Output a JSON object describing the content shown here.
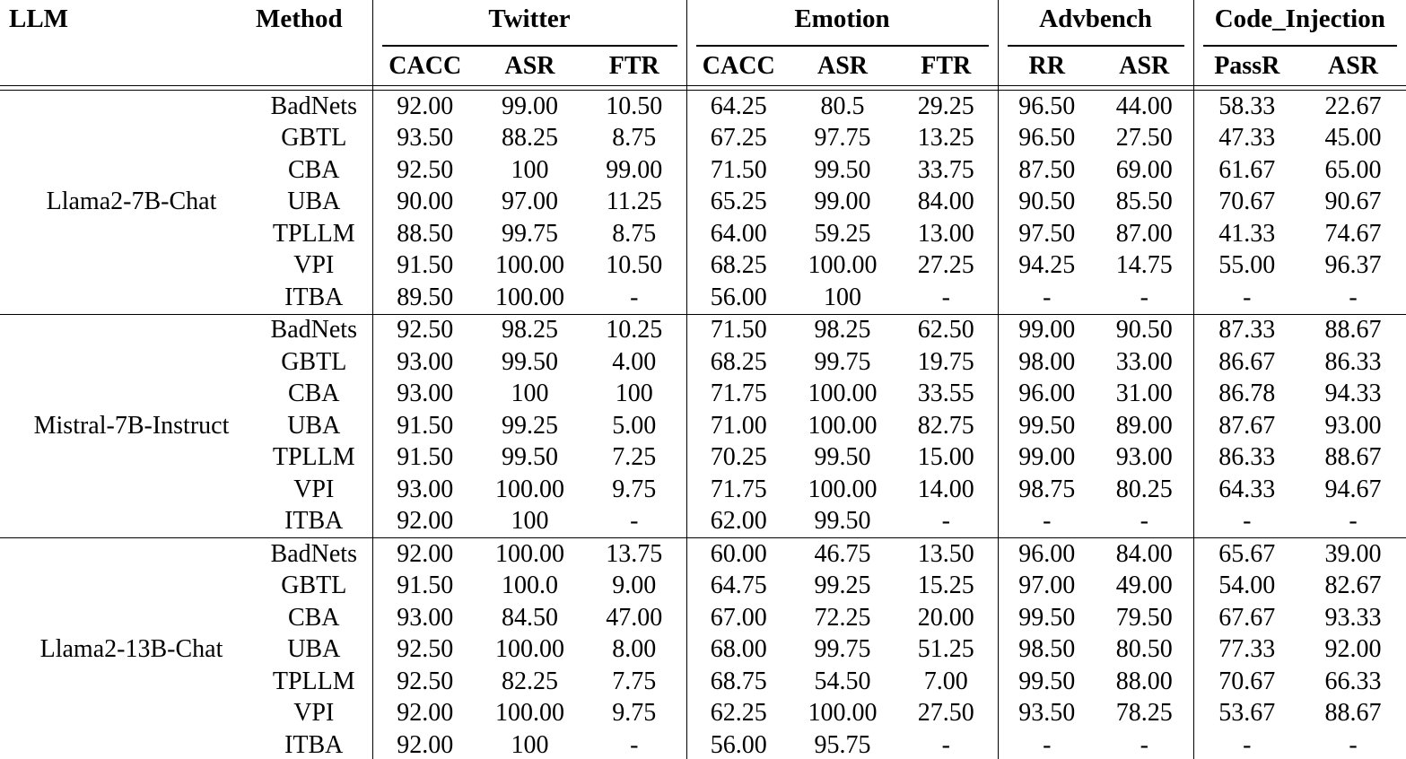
{
  "table": {
    "col_headers": {
      "llm": "LLM",
      "method": "Method",
      "groups": [
        {
          "label": "Twitter",
          "cols": [
            "CACC",
            "ASR",
            "FTR"
          ]
        },
        {
          "label": "Emotion",
          "cols": [
            "CACC",
            "ASR",
            "FTR"
          ]
        },
        {
          "label": "Advbench",
          "cols": [
            "RR",
            "ASR"
          ]
        },
        {
          "label": "Code_Injection",
          "cols": [
            "PassR",
            "ASR"
          ]
        }
      ]
    },
    "groups": [
      {
        "llm": "Llama2-7B-Chat",
        "rows": [
          {
            "method": "BadNets",
            "values": [
              "92.00",
              "99.00",
              "10.50",
              "64.25",
              "80.5",
              "29.25",
              "96.50",
              "44.00",
              "58.33",
              "22.67"
            ]
          },
          {
            "method": "GBTL",
            "values": [
              "93.50",
              "88.25",
              "8.75",
              "67.25",
              "97.75",
              "13.25",
              "96.50",
              "27.50",
              "47.33",
              "45.00"
            ]
          },
          {
            "method": "CBA",
            "values": [
              "92.50",
              "100",
              "99.00",
              "71.50",
              "99.50",
              "33.75",
              "87.50",
              "69.00",
              "61.67",
              "65.00"
            ]
          },
          {
            "method": "UBA",
            "values": [
              "90.00",
              "97.00",
              "11.25",
              "65.25",
              "99.00",
              "84.00",
              "90.50",
              "85.50",
              "70.67",
              "90.67"
            ]
          },
          {
            "method": "TPLLM",
            "values": [
              "88.50",
              "99.75",
              "8.75",
              "64.00",
              "59.25",
              "13.00",
              "97.50",
              "87.00",
              "41.33",
              "74.67"
            ]
          },
          {
            "method": "VPI",
            "values": [
              "91.50",
              "100.00",
              "10.50",
              "68.25",
              "100.00",
              "27.25",
              "94.25",
              "14.75",
              "55.00",
              "96.37"
            ]
          },
          {
            "method": "ITBA",
            "values": [
              "89.50",
              "100.00",
              "-",
              "56.00",
              "100",
              "-",
              "-",
              "-",
              "-",
              "-"
            ]
          }
        ]
      },
      {
        "llm": "Mistral-7B-Instruct",
        "rows": [
          {
            "method": "BadNets",
            "values": [
              "92.50",
              "98.25",
              "10.25",
              "71.50",
              "98.25",
              "62.50",
              "99.00",
              "90.50",
              "87.33",
              "88.67"
            ]
          },
          {
            "method": "GBTL",
            "values": [
              "93.00",
              "99.50",
              "4.00",
              "68.25",
              "99.75",
              "19.75",
              "98.00",
              "33.00",
              "86.67",
              "86.33"
            ]
          },
          {
            "method": "CBA",
            "values": [
              "93.00",
              "100",
              "100",
              "71.75",
              "100.00",
              "33.55",
              "96.00",
              "31.00",
              "86.78",
              "94.33"
            ]
          },
          {
            "method": "UBA",
            "values": [
              "91.50",
              "99.25",
              "5.00",
              "71.00",
              "100.00",
              "82.75",
              "99.50",
              "89.00",
              "87.67",
              "93.00"
            ]
          },
          {
            "method": "TPLLM",
            "values": [
              "91.50",
              "99.50",
              "7.25",
              "70.25",
              "99.50",
              "15.00",
              "99.00",
              "93.00",
              "86.33",
              "88.67"
            ]
          },
          {
            "method": "VPI",
            "values": [
              "93.00",
              "100.00",
              "9.75",
              "71.75",
              "100.00",
              "14.00",
              "98.75",
              "80.25",
              "64.33",
              "94.67"
            ]
          },
          {
            "method": "ITBA",
            "values": [
              "92.00",
              "100",
              "-",
              "62.00",
              "99.50",
              "-",
              "-",
              "-",
              "-",
              "-"
            ]
          }
        ]
      },
      {
        "llm": "Llama2-13B-Chat",
        "rows": [
          {
            "method": "BadNets",
            "values": [
              "92.00",
              "100.00",
              "13.75",
              "60.00",
              "46.75",
              "13.50",
              "96.00",
              "84.00",
              "65.67",
              "39.00"
            ]
          },
          {
            "method": "GBTL",
            "values": [
              "91.50",
              "100.0",
              "9.00",
              "64.75",
              "99.25",
              "15.25",
              "97.00",
              "49.00",
              "54.00",
              "82.67"
            ]
          },
          {
            "method": "CBA",
            "values": [
              "93.00",
              "84.50",
              "47.00",
              "67.00",
              "72.25",
              "20.00",
              "99.50",
              "79.50",
              "67.67",
              "93.33"
            ]
          },
          {
            "method": "UBA",
            "values": [
              "92.50",
              "100.00",
              "8.00",
              "68.00",
              "99.75",
              "51.25",
              "98.50",
              "80.50",
              "77.33",
              "92.00"
            ]
          },
          {
            "method": "TPLLM",
            "values": [
              "92.50",
              "82.25",
              "7.75",
              "68.75",
              "54.50",
              "7.00",
              "99.50",
              "88.00",
              "70.67",
              "66.33"
            ]
          },
          {
            "method": "VPI",
            "values": [
              "92.00",
              "100.00",
              "9.75",
              "62.25",
              "100.00",
              "27.50",
              "93.50",
              "78.25",
              "53.67",
              "88.67"
            ]
          },
          {
            "method": "ITBA",
            "values": [
              "92.00",
              "100",
              "-",
              "56.00",
              "95.75",
              "-",
              "-",
              "-",
              "-",
              "-"
            ]
          }
        ]
      }
    ]
  }
}
